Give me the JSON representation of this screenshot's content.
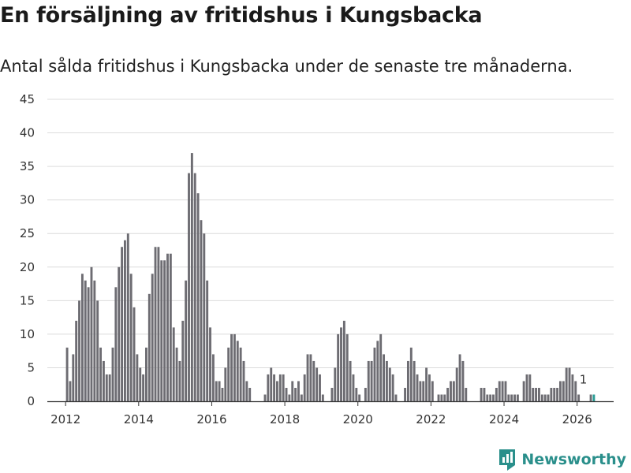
{
  "header": {
    "title": "En försäljning av fritidshus i Kungsbacka",
    "subtitle": "Antal sålda fritidshus i Kungsbacka under de senaste tre månaderna."
  },
  "brand": {
    "name": "Newsworthy",
    "icon": "newsworthy-logo-icon"
  },
  "colors": {
    "bar": "#6d6c72",
    "highlight": "#2a9d96",
    "grid": "#dcdcdc",
    "axis": "#333333",
    "brand": "#2a8f8b"
  },
  "chart_data": {
    "type": "bar",
    "title": "En försäljning av fritidshus i Kungsbacka",
    "subtitle": "Antal sålda fritidshus i Kungsbacka under de senaste tre månaderna.",
    "xlabel": "",
    "ylabel": "",
    "ylim": [
      0,
      45
    ],
    "yticks": [
      0,
      5,
      10,
      15,
      20,
      25,
      30,
      35,
      40,
      45
    ],
    "xlim": [
      2011.5,
      2027.0
    ],
    "xticks": [
      2012,
      2014,
      2016,
      2018,
      2020,
      2022,
      2024,
      2026
    ],
    "grid": true,
    "series": [
      {
        "name": "Antal sålda fritidshus",
        "start": 2012.0,
        "step_months": 1,
        "values": [
          8,
          3,
          7,
          12,
          15,
          19,
          18,
          17,
          20,
          18,
          15,
          8,
          6,
          4,
          4,
          8,
          17,
          20,
          23,
          24,
          25,
          19,
          14,
          7,
          5,
          4,
          8,
          16,
          19,
          23,
          23,
          21,
          21,
          22,
          22,
          11,
          8,
          6,
          12,
          18,
          34,
          37,
          34,
          31,
          27,
          25,
          18,
          11,
          7,
          3,
          3,
          2,
          5,
          8,
          10,
          10,
          9,
          8,
          6,
          3,
          2,
          0,
          0,
          0,
          0,
          1,
          4,
          5,
          4,
          3,
          4,
          4,
          2,
          1,
          3,
          2,
          3,
          1,
          4,
          7,
          7,
          6,
          5,
          4,
          1,
          0,
          0,
          2,
          5,
          10,
          11,
          12,
          10,
          6,
          4,
          2,
          1,
          0,
          2,
          6,
          6,
          8,
          9,
          10,
          7,
          6,
          5,
          4,
          1,
          0,
          0,
          2,
          6,
          8,
          6,
          4,
          3,
          3,
          5,
          4,
          3,
          0,
          1,
          1,
          1,
          2,
          3,
          3,
          5,
          7,
          6,
          2,
          0,
          0,
          0,
          0,
          2,
          2,
          1,
          1,
          1,
          2,
          3,
          3,
          3,
          1,
          1,
          1,
          1,
          0,
          3,
          4,
          4,
          2,
          2,
          2,
          1,
          1,
          1,
          2,
          2,
          2,
          3,
          3,
          5,
          5,
          4,
          3,
          1,
          0,
          0,
          0,
          1,
          1
        ]
      }
    ],
    "annotations": [
      {
        "label": "1",
        "x": 2026.17,
        "y": 1
      }
    ]
  }
}
